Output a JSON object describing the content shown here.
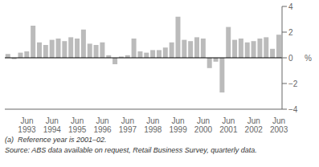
{
  "chart_data": {
    "type": "bar",
    "ylabel": "%",
    "annotations": [
      "(a)  Reference year is 2001–02.",
      "Source: ABS data available on request, Retail Business Survey, quarterly data."
    ],
    "categories": [
      null,
      null,
      null,
      "Jun\n1993",
      null,
      null,
      null,
      "Jun\n1994",
      null,
      null,
      null,
      "Jun\n1995",
      null,
      null,
      null,
      "Jun\n1996",
      null,
      null,
      null,
      "Jun\n1997",
      null,
      null,
      null,
      "Jun\n1998",
      null,
      null,
      null,
      "Jun\n1999",
      null,
      null,
      null,
      "Jun\n2000",
      null,
      null,
      null,
      "Jun\n2001",
      null,
      null,
      null,
      "Jun\n2002",
      null,
      null,
      null,
      "Jun\n2003"
    ],
    "values": [
      0.3,
      -0.1,
      0.4,
      0.5,
      2.5,
      1.2,
      1.0,
      1.4,
      1.5,
      1.3,
      1.6,
      1.5,
      2.2,
      1.1,
      1.0,
      1.2,
      0.2,
      -0.5,
      0.1,
      0.2,
      1.5,
      0.5,
      0.4,
      0.6,
      0.6,
      0.8,
      1.2,
      3.2,
      1.4,
      1.3,
      1.6,
      1.5,
      -0.8,
      -0.3,
      -2.7,
      2.4,
      1.4,
      1.5,
      1.2,
      1.3,
      1.5,
      1.6,
      0.7,
      1.8
    ],
    "color": "#bbbbbb",
    "ylim": [
      -4,
      4
    ],
    "yticks": [
      {
        "value": -4,
        "label": "−4"
      },
      {
        "value": -2,
        "label": "−2"
      },
      0,
      2,
      4
    ],
    "grid": false
  }
}
